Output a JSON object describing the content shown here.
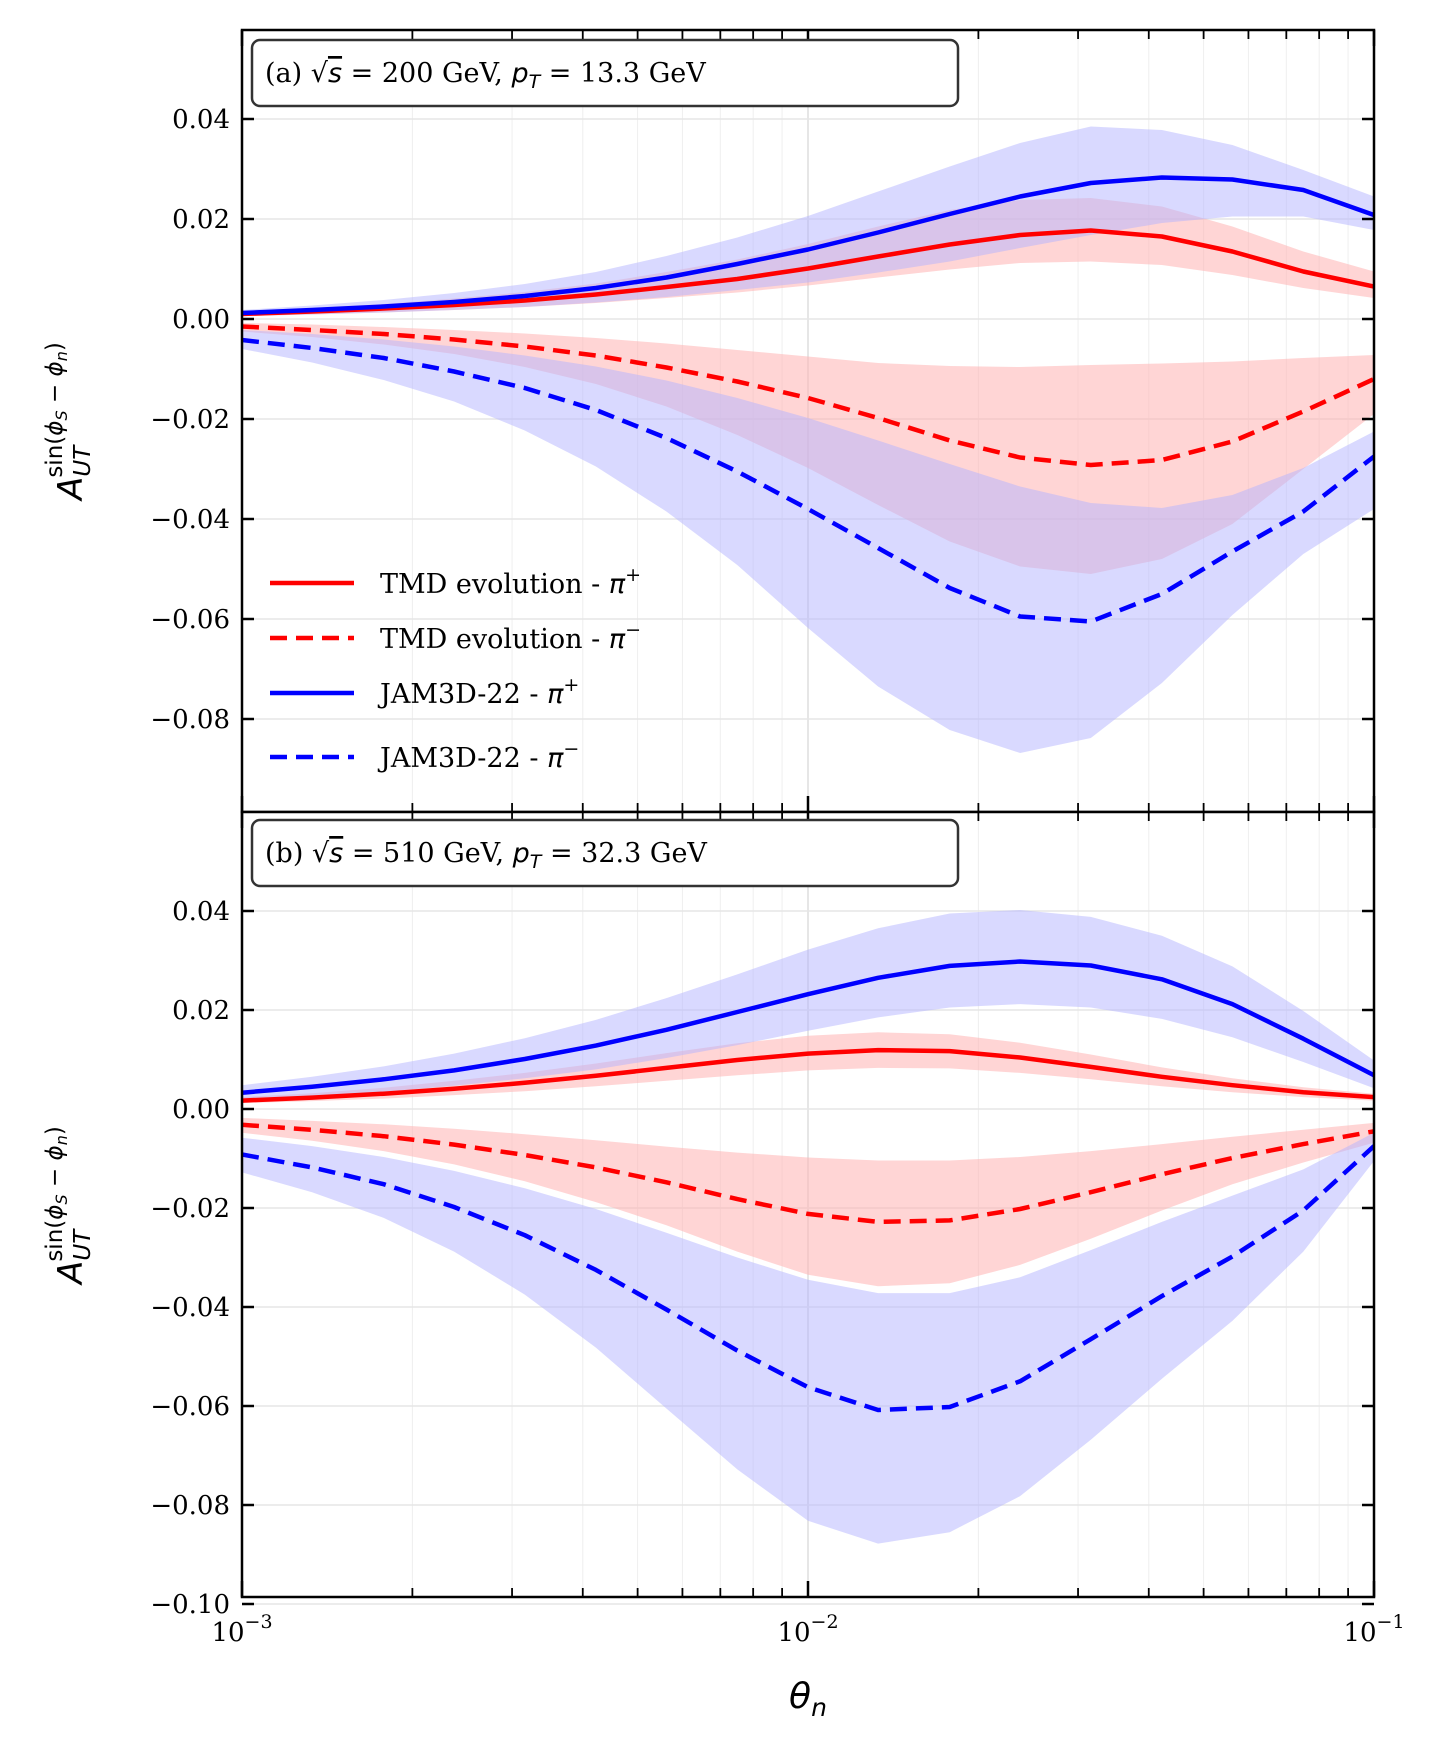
{
  "colors": {
    "red": "#ff0000",
    "blue": "#0000ff",
    "red_band": "#ffb3b3",
    "blue_band": "#b3b3ff",
    "grid": "#e6e6e6",
    "axis": "#000000"
  },
  "shared": {
    "xlabel": "θ",
    "xlabel_sub": "n",
    "ylabel": {
      "base": "A",
      "sub": "UT",
      "sup_pre": "sin(",
      "sup_phi1": "ϕ",
      "sup_phi1_sub": "S",
      "sup_minus": " − ",
      "sup_phi2": "ϕ",
      "sup_phi2_sub": "n",
      "sup_post": ")"
    },
    "xticks": [
      {
        "value": 0.001,
        "base": "10",
        "exp": "−3"
      },
      {
        "value": 0.01,
        "base": "10",
        "exp": "−2"
      },
      {
        "value": 0.1,
        "base": "10",
        "exp": "−1"
      }
    ],
    "xlim": [
      0.001,
      0.1
    ],
    "xscale": "log"
  },
  "legend": {
    "location": "lower-left of panel (a)",
    "entries": [
      {
        "label": "TMD evolution - ",
        "pi": "π",
        "charge": "+",
        "color": "red",
        "style": "solid"
      },
      {
        "label": "TMD evolution - ",
        "pi": "π",
        "charge": "−",
        "color": "red",
        "style": "dashed"
      },
      {
        "label": "JAM3D-22 - ",
        "pi": "π",
        "charge": "+",
        "color": "blue",
        "style": "solid"
      },
      {
        "label": "JAM3D-22 - ",
        "pi": "π",
        "charge": "−",
        "color": "blue",
        "style": "dashed"
      }
    ]
  },
  "chart_data": [
    {
      "type": "line",
      "panel": "a",
      "annotation": {
        "pre": "(a) ",
        "sqrt_s": "s",
        "energy": " = 200 GeV, ",
        "pt": "p",
        "pt_sub": "T",
        "pt_val": " = 13.3 GeV"
      },
      "ylim": [
        -0.1,
        0.058
      ],
      "yticks": [
        0.04,
        0.02,
        0.0,
        -0.02,
        -0.04,
        -0.06,
        -0.08
      ],
      "ytick_labels": [
        "0.04",
        "0.02",
        "0.00",
        "−0.02",
        "−0.04",
        "−0.06",
        "−0.08"
      ],
      "x": [
        0.001,
        0.00133,
        0.00178,
        0.00237,
        0.00316,
        0.00422,
        0.00562,
        0.0075,
        0.01,
        0.0133,
        0.0178,
        0.0237,
        0.0316,
        0.0422,
        0.0562,
        0.075,
        0.1
      ],
      "series": [
        {
          "name": "TMD evolution - π+",
          "color": "red",
          "style": "solid",
          "values": [
            0.001,
            0.0015,
            0.0021,
            0.0028,
            0.0037,
            0.0049,
            0.0064,
            0.008,
            0.0101,
            0.0125,
            0.0149,
            0.0168,
            0.0177,
            0.0165,
            0.0135,
            0.0095,
            0.0065
          ],
          "band_lo": [
            0.0006,
            0.0009,
            0.0013,
            0.0018,
            0.0024,
            0.0032,
            0.0042,
            0.0053,
            0.0067,
            0.0083,
            0.0099,
            0.0112,
            0.0115,
            0.0108,
            0.0088,
            0.0062,
            0.0042
          ],
          "band_hi": [
            0.0015,
            0.0022,
            0.003,
            0.0041,
            0.0054,
            0.0071,
            0.0094,
            0.0119,
            0.015,
            0.0185,
            0.0218,
            0.0238,
            0.0242,
            0.0225,
            0.0185,
            0.0135,
            0.0095
          ]
        },
        {
          "name": "TMD evolution - π−",
          "color": "red",
          "style": "dashed",
          "values": [
            -0.0015,
            -0.0022,
            -0.003,
            -0.0041,
            -0.0055,
            -0.0073,
            -0.0097,
            -0.0125,
            -0.0158,
            -0.0198,
            -0.0243,
            -0.0277,
            -0.0292,
            -0.0282,
            -0.0245,
            -0.0185,
            -0.012
          ],
          "band_lo": [
            -0.0025,
            -0.0036,
            -0.0051,
            -0.007,
            -0.0096,
            -0.013,
            -0.0175,
            -0.0232,
            -0.0298,
            -0.0372,
            -0.0445,
            -0.0495,
            -0.051,
            -0.048,
            -0.041,
            -0.03,
            -0.019
          ],
          "band_hi": [
            -0.0008,
            -0.0011,
            -0.0016,
            -0.0022,
            -0.0029,
            -0.0038,
            -0.0049,
            -0.0062,
            -0.0075,
            -0.0088,
            -0.0094,
            -0.0096,
            -0.0092,
            -0.0089,
            -0.0085,
            -0.0078,
            -0.0072
          ]
        },
        {
          "name": "JAM3D-22 - π+",
          "color": "blue",
          "style": "solid",
          "values": [
            0.0012,
            0.0018,
            0.0025,
            0.0034,
            0.0046,
            0.0062,
            0.0083,
            0.011,
            0.0139,
            0.0173,
            0.021,
            0.0245,
            0.0272,
            0.0283,
            0.0279,
            0.0258,
            0.0208
          ],
          "band_lo": [
            0.0006,
            0.0009,
            0.0013,
            0.0018,
            0.0024,
            0.0033,
            0.0044,
            0.0058,
            0.0073,
            0.0093,
            0.0115,
            0.0142,
            0.0168,
            0.0192,
            0.0205,
            0.0205,
            0.0178
          ],
          "band_hi": [
            0.0018,
            0.0027,
            0.0038,
            0.0052,
            0.007,
            0.0094,
            0.0126,
            0.0163,
            0.0206,
            0.0255,
            0.0305,
            0.0352,
            0.0385,
            0.0378,
            0.0348,
            0.0298,
            0.0245
          ]
        },
        {
          "name": "JAM3D-22 - π−",
          "color": "blue",
          "style": "dashed",
          "values": [
            -0.0042,
            -0.0058,
            -0.0078,
            -0.0105,
            -0.0138,
            -0.0182,
            -0.0238,
            -0.0305,
            -0.038,
            -0.0458,
            -0.0538,
            -0.0595,
            -0.0605,
            -0.055,
            -0.0465,
            -0.0385,
            -0.0275
          ],
          "band_lo": [
            -0.006,
            -0.0087,
            -0.0122,
            -0.0165,
            -0.0223,
            -0.0295,
            -0.0385,
            -0.0492,
            -0.0618,
            -0.0735,
            -0.0822,
            -0.0868,
            -0.0838,
            -0.0728,
            -0.0592,
            -0.047,
            -0.038
          ],
          "band_hi": [
            -0.0022,
            -0.003,
            -0.0041,
            -0.0055,
            -0.0073,
            -0.0095,
            -0.0123,
            -0.0158,
            -0.0198,
            -0.0243,
            -0.029,
            -0.0335,
            -0.0368,
            -0.0378,
            -0.0352,
            -0.0298,
            -0.0225
          ]
        }
      ]
    },
    {
      "type": "line",
      "panel": "b",
      "annotation": {
        "pre": "(b) ",
        "sqrt_s": "s",
        "energy": " = 510 GeV, ",
        "pt": "p",
        "pt_sub": "T",
        "pt_val": " = 32.3 GeV"
      },
      "ylim": [
        -0.1,
        0.058
      ],
      "yticks": [
        0.04,
        0.02,
        0.0,
        -0.02,
        -0.04,
        -0.06,
        -0.08,
        -0.1
      ],
      "ytick_labels": [
        "0.04",
        "0.02",
        "0.00",
        "−0.02",
        "−0.04",
        "−0.06",
        "−0.08",
        "−0.10"
      ],
      "x": [
        0.001,
        0.00133,
        0.00178,
        0.00237,
        0.00316,
        0.00422,
        0.00562,
        0.0075,
        0.01,
        0.0133,
        0.0178,
        0.0237,
        0.0316,
        0.0422,
        0.0562,
        0.075,
        0.1
      ],
      "series": [
        {
          "name": "TMD evolution - π+",
          "color": "red",
          "style": "solid",
          "values": [
            0.0017,
            0.0023,
            0.0031,
            0.0041,
            0.0053,
            0.0067,
            0.0083,
            0.0099,
            0.0112,
            0.0119,
            0.0117,
            0.0104,
            0.0085,
            0.0065,
            0.0048,
            0.0034,
            0.0024
          ],
          "band_lo": [
            0.0012,
            0.0016,
            0.0021,
            0.0028,
            0.0036,
            0.0046,
            0.0057,
            0.0068,
            0.0078,
            0.0083,
            0.0082,
            0.0073,
            0.006,
            0.0046,
            0.0034,
            0.0024,
            0.0017
          ],
          "band_hi": [
            0.0024,
            0.0032,
            0.0043,
            0.0057,
            0.0073,
            0.0092,
            0.0113,
            0.0133,
            0.0148,
            0.0155,
            0.0151,
            0.0134,
            0.011,
            0.0084,
            0.0062,
            0.0044,
            0.0031
          ]
        },
        {
          "name": "TMD evolution - π−",
          "color": "red",
          "style": "dashed",
          "values": [
            -0.0032,
            -0.0042,
            -0.0055,
            -0.0072,
            -0.0093,
            -0.0118,
            -0.0148,
            -0.0182,
            -0.0212,
            -0.0228,
            -0.0225,
            -0.0202,
            -0.0168,
            -0.0132,
            -0.0099,
            -0.0071,
            -0.0045
          ],
          "band_lo": [
            -0.0048,
            -0.0064,
            -0.0085,
            -0.0112,
            -0.0146,
            -0.0188,
            -0.0235,
            -0.0288,
            -0.0335,
            -0.0358,
            -0.0352,
            -0.0315,
            -0.0262,
            -0.0205,
            -0.0152,
            -0.0108,
            -0.0068
          ],
          "band_hi": [
            -0.0018,
            -0.0024,
            -0.0031,
            -0.004,
            -0.0051,
            -0.0063,
            -0.0076,
            -0.0088,
            -0.0098,
            -0.0104,
            -0.0104,
            -0.0097,
            -0.0085,
            -0.0071,
            -0.0056,
            -0.0042,
            -0.0028
          ]
        },
        {
          "name": "JAM3D-22 - π+",
          "color": "blue",
          "style": "solid",
          "values": [
            0.0033,
            0.0045,
            0.006,
            0.0078,
            0.0101,
            0.0128,
            0.016,
            0.0196,
            0.0232,
            0.0265,
            0.0289,
            0.0298,
            0.029,
            0.0262,
            0.0212,
            0.0142,
            0.0068
          ],
          "band_lo": [
            0.0018,
            0.0026,
            0.0035,
            0.0047,
            0.0062,
            0.008,
            0.0103,
            0.0129,
            0.0158,
            0.0185,
            0.0205,
            0.0212,
            0.0205,
            0.0182,
            0.0145,
            0.0095,
            0.0042
          ],
          "band_hi": [
            0.0048,
            0.0065,
            0.0086,
            0.0112,
            0.0143,
            0.018,
            0.0224,
            0.0272,
            0.0322,
            0.0365,
            0.0395,
            0.0402,
            0.0388,
            0.035,
            0.0288,
            0.0198,
            0.0098
          ]
        },
        {
          "name": "JAM3D-22 - π−",
          "color": "blue",
          "style": "dashed",
          "values": [
            -0.0092,
            -0.0118,
            -0.0152,
            -0.0198,
            -0.0255,
            -0.0325,
            -0.0405,
            -0.0488,
            -0.0562,
            -0.0608,
            -0.0602,
            -0.055,
            -0.0465,
            -0.0378,
            -0.0298,
            -0.0205,
            -0.0075
          ],
          "band_lo": [
            -0.0128,
            -0.0168,
            -0.022,
            -0.0288,
            -0.0375,
            -0.0482,
            -0.0605,
            -0.0728,
            -0.0832,
            -0.0878,
            -0.0855,
            -0.0782,
            -0.0668,
            -0.0545,
            -0.0428,
            -0.0288,
            -0.0105
          ],
          "band_hi": [
            -0.0058,
            -0.0075,
            -0.0097,
            -0.0125,
            -0.016,
            -0.0202,
            -0.025,
            -0.03,
            -0.0345,
            -0.0372,
            -0.0372,
            -0.034,
            -0.0285,
            -0.0228,
            -0.0175,
            -0.0122,
            -0.0048
          ]
        }
      ]
    }
  ]
}
